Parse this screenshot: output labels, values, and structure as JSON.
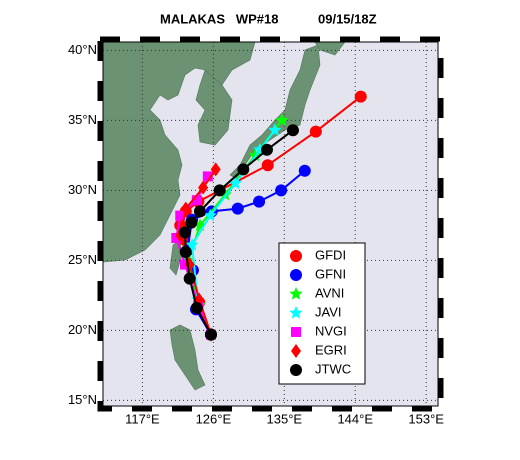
{
  "chart_data": {
    "type": "track-map",
    "title": "MALAKAS   WP#18",
    "date": "09/15/18Z",
    "xlim": [
      112,
      154.5
    ],
    "ylim": [
      14.6,
      40.6
    ],
    "xticks": [
      {
        "value": 117,
        "label": "117°E"
      },
      {
        "value": 126,
        "label": "126°E"
      },
      {
        "value": 135,
        "label": "135°E"
      },
      {
        "value": 144,
        "label": "144°E"
      },
      {
        "value": 153,
        "label": "153°E"
      }
    ],
    "yticks": [
      {
        "value": 15,
        "label": "15°N"
      },
      {
        "value": 20,
        "label": "20°N"
      },
      {
        "value": 25,
        "label": "25°N"
      },
      {
        "value": 30,
        "label": "30°N"
      },
      {
        "value": 35,
        "label": "35°N"
      },
      {
        "value": 40,
        "label": "40°N"
      }
    ],
    "grid": true,
    "legend": "lower right",
    "series": [
      {
        "name": "GFDI",
        "color": "#ff0000",
        "marker": "circle",
        "x": [
          125.7,
          124.2,
          123.4,
          122.3,
          121.8,
          122.5,
          124.1,
          132.9,
          139.0,
          144.7
        ],
        "values": [
          19.7,
          22.0,
          24.3,
          26.5,
          27.5,
          28.5,
          29.2,
          31.8,
          34.2,
          36.7
        ]
      },
      {
        "name": "GFNI",
        "color": "#0000ff",
        "marker": "circle",
        "x": [
          125.7,
          123.8,
          123.4,
          122.7,
          123.3,
          125.8,
          129.1,
          131.8,
          134.6,
          137.6
        ],
        "values": [
          19.7,
          21.5,
          24.3,
          25.7,
          27.9,
          28.5,
          28.7,
          29.2,
          30.0,
          31.4
        ]
      },
      {
        "name": "AVNI",
        "color": "#00ff00",
        "marker": "star",
        "x": [
          125.7,
          124.2,
          122.8,
          124.3,
          127.5,
          131.3,
          134.7
        ],
        "values": [
          19.7,
          21.8,
          25.0,
          27.5,
          29.7,
          32.5,
          35.0
        ]
      },
      {
        "name": "JAVI",
        "color": "#00ffff",
        "marker": "star",
        "x": [
          125.7,
          124.0,
          123.3,
          125.6,
          128.8,
          131.9,
          133.8
        ],
        "values": [
          19.7,
          22.2,
          26.1,
          28.2,
          30.5,
          32.9,
          34.3
        ]
      },
      {
        "name": "NVGI",
        "color": "#ff00ff",
        "marker": "square",
        "x": [
          125.7,
          124.1,
          122.4,
          121.3,
          121.8,
          123.9,
          125.3
        ],
        "values": [
          19.7,
          21.8,
          24.7,
          26.6,
          28.2,
          29.3,
          31.0
        ]
      },
      {
        "name": "EGRI",
        "color": "#ff0000",
        "marker": "diamond",
        "x": [
          125.7,
          124.2,
          123.0,
          121.8,
          122.5,
          124.7,
          126.3
        ],
        "values": [
          19.7,
          22.2,
          24.7,
          26.8,
          28.7,
          30.2,
          31.5
        ]
      },
      {
        "name": "JTWC",
        "color": "#000000",
        "marker": "circle",
        "x": [
          125.7,
          123.9,
          123.0,
          122.5,
          122.4,
          123.2,
          124.3,
          126.8,
          129.8,
          132.8,
          136.1
        ],
        "values": [
          19.7,
          21.6,
          23.7,
          25.6,
          27.0,
          27.7,
          28.5,
          30.0,
          31.5,
          32.9,
          34.3
        ]
      }
    ]
  }
}
